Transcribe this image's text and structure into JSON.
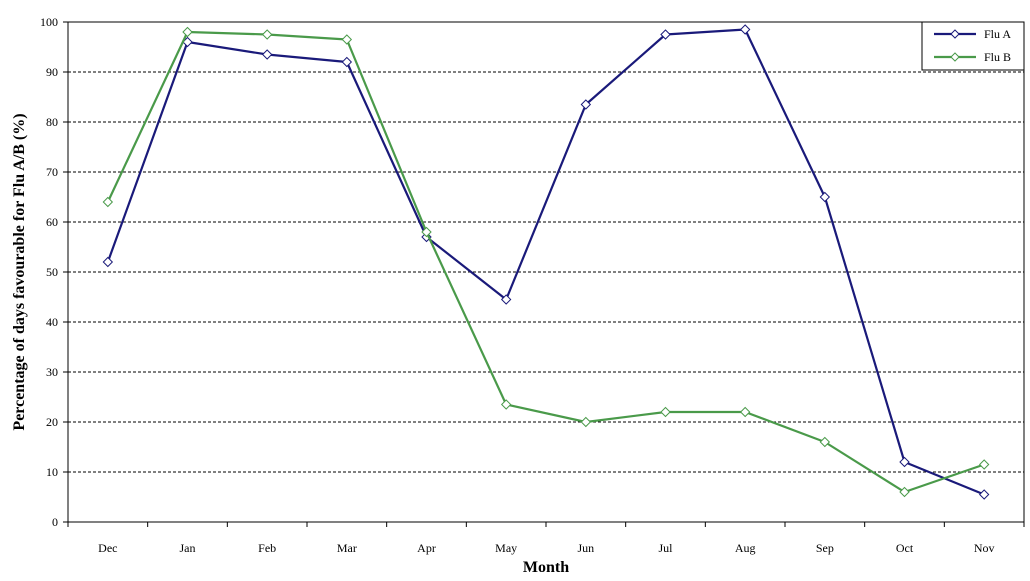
{
  "chart_data": {
    "type": "line",
    "title": "",
    "xlabel": "Month",
    "ylabel": "Percentage of days favourable for Flu A/B (%)",
    "categories": [
      "Dec",
      "Jan",
      "Feb",
      "Mar",
      "Apr",
      "May",
      "Jun",
      "Jul",
      "Aug",
      "Sep",
      "Oct",
      "Nov"
    ],
    "ylim": [
      0,
      100
    ],
    "yticks": [
      0,
      10,
      20,
      30,
      40,
      50,
      60,
      70,
      80,
      90,
      100
    ],
    "grid": "horizontal dashed",
    "legend_position": "top-right",
    "series": [
      {
        "name": "Flu A",
        "color": "#1a1a7a",
        "marker": "diamond",
        "values": [
          52,
          96,
          93.5,
          92,
          57,
          44.5,
          83.5,
          97.5,
          98.5,
          65,
          12,
          5.5
        ]
      },
      {
        "name": "Flu B",
        "color": "#4a9a4a",
        "marker": "diamond",
        "values": [
          64,
          98,
          97.5,
          96.5,
          58,
          23.5,
          20,
          22,
          22,
          16,
          6,
          11.5
        ]
      }
    ]
  }
}
